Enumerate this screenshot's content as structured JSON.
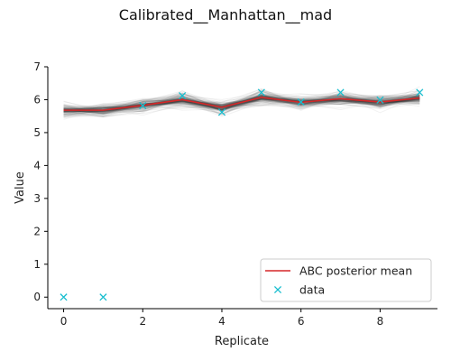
{
  "chart_data": {
    "type": "line",
    "title": "Calibrated__Manhattan__mad",
    "xlabel": "Replicate",
    "ylabel": "Value",
    "xlim": [
      -0.4,
      9.45
    ],
    "ylim": [
      -0.35,
      7.0
    ],
    "x_ticks": [
      0,
      2,
      4,
      6,
      8
    ],
    "y_ticks": [
      0,
      1,
      2,
      3,
      4,
      5,
      6,
      7
    ],
    "x": [
      0,
      1,
      2,
      3,
      4,
      5,
      6,
      7,
      8,
      9
    ],
    "series": [
      {
        "name": "ABC posterior mean",
        "style": "line",
        "color": "#d62728",
        "values": [
          5.68,
          5.68,
          5.83,
          6.0,
          5.77,
          6.07,
          5.92,
          6.03,
          5.93,
          6.05
        ]
      },
      {
        "name": "data",
        "style": "x-marker",
        "color": "#17becf",
        "values": [
          0.0,
          0.0,
          5.82,
          6.12,
          5.62,
          6.22,
          5.93,
          6.22,
          5.99,
          6.22
        ]
      }
    ],
    "posterior_band": {
      "color": "#555555",
      "mean": [
        5.68,
        5.68,
        5.83,
        6.0,
        5.77,
        6.07,
        5.92,
        6.03,
        5.93,
        6.05
      ],
      "spread": 0.35
    },
    "legend_position": "lower-right",
    "grid": false
  }
}
